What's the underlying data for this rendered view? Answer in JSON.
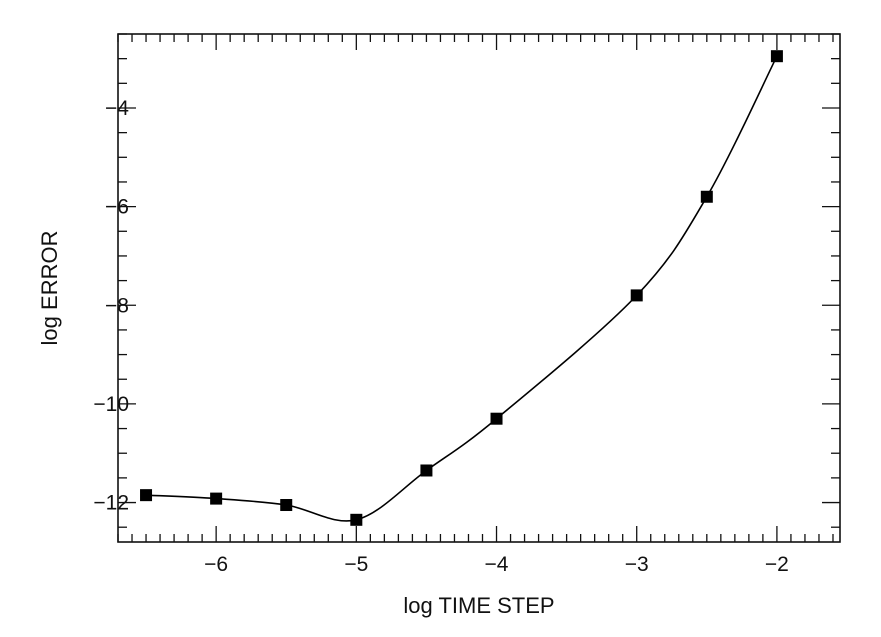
{
  "chart_data": {
    "type": "line",
    "title": "",
    "xlabel": "log TIME STEP",
    "ylabel": "log ERROR",
    "xlim": [
      -6.7,
      -1.55
    ],
    "ylim": [
      -12.8,
      -2.5
    ],
    "x_ticks": [
      -6,
      -5,
      -4,
      -3,
      -2
    ],
    "y_ticks": [
      -12,
      -10,
      -8,
      -6,
      -4
    ],
    "x_tick_labels": [
      "−6",
      "−5",
      "−4",
      "−3",
      "−2"
    ],
    "y_tick_labels": [
      "−12",
      "−10",
      "−8",
      "−6",
      "−4"
    ],
    "x_minor_step": 0.1,
    "y_minor_step": 0.5,
    "grid": false,
    "legend": "none",
    "line_color": "#000000",
    "series": [
      {
        "marker": "square",
        "x": [
          -6.5,
          -6.0,
          -5.5,
          -5.0,
          -4.5,
          -4.0,
          -3.0,
          -2.5,
          -2.0
        ],
        "y": [
          -11.85,
          -11.92,
          -12.05,
          -12.35,
          -11.35,
          -10.3,
          -7.8,
          -5.8,
          -2.95
        ]
      }
    ]
  }
}
